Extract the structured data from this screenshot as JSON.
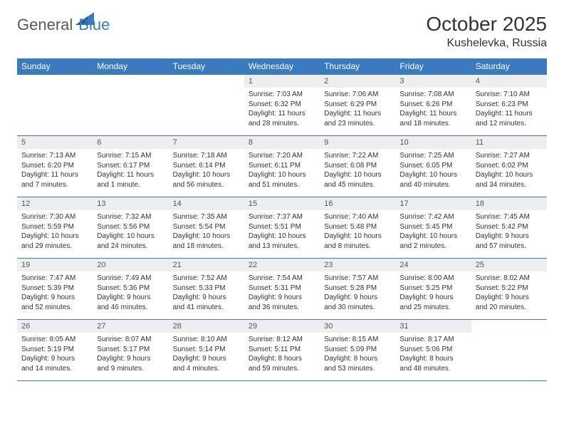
{
  "brand": {
    "part1": "General",
    "part2": "Blue"
  },
  "title": "October 2025",
  "location": "Kushelevka, Russia",
  "header_bg": "#3a7bbf",
  "header_fg": "#ffffff",
  "daynum_bg": "#eeeeee",
  "border_color": "#3a7bbf",
  "text_color": "#333333",
  "font_family": "Arial, Helvetica, sans-serif",
  "title_fontsize": 28,
  "location_fontsize": 16,
  "header_fontsize": 12,
  "cell_fontsize": 10,
  "columns": [
    "Sunday",
    "Monday",
    "Tuesday",
    "Wednesday",
    "Thursday",
    "Friday",
    "Saturday"
  ],
  "weeks": [
    [
      null,
      null,
      null,
      {
        "n": "1",
        "sr": "7:03 AM",
        "ss": "6:32 PM",
        "dl": "11 hours and 28 minutes."
      },
      {
        "n": "2",
        "sr": "7:06 AM",
        "ss": "6:29 PM",
        "dl": "11 hours and 23 minutes."
      },
      {
        "n": "3",
        "sr": "7:08 AM",
        "ss": "6:26 PM",
        "dl": "11 hours and 18 minutes."
      },
      {
        "n": "4",
        "sr": "7:10 AM",
        "ss": "6:23 PM",
        "dl": "11 hours and 12 minutes."
      }
    ],
    [
      {
        "n": "5",
        "sr": "7:13 AM",
        "ss": "6:20 PM",
        "dl": "11 hours and 7 minutes."
      },
      {
        "n": "6",
        "sr": "7:15 AM",
        "ss": "6:17 PM",
        "dl": "11 hours and 1 minute."
      },
      {
        "n": "7",
        "sr": "7:18 AM",
        "ss": "6:14 PM",
        "dl": "10 hours and 56 minutes."
      },
      {
        "n": "8",
        "sr": "7:20 AM",
        "ss": "6:11 PM",
        "dl": "10 hours and 51 minutes."
      },
      {
        "n": "9",
        "sr": "7:22 AM",
        "ss": "6:08 PM",
        "dl": "10 hours and 45 minutes."
      },
      {
        "n": "10",
        "sr": "7:25 AM",
        "ss": "6:05 PM",
        "dl": "10 hours and 40 minutes."
      },
      {
        "n": "11",
        "sr": "7:27 AM",
        "ss": "6:02 PM",
        "dl": "10 hours and 34 minutes."
      }
    ],
    [
      {
        "n": "12",
        "sr": "7:30 AM",
        "ss": "5:59 PM",
        "dl": "10 hours and 29 minutes."
      },
      {
        "n": "13",
        "sr": "7:32 AM",
        "ss": "5:56 PM",
        "dl": "10 hours and 24 minutes."
      },
      {
        "n": "14",
        "sr": "7:35 AM",
        "ss": "5:54 PM",
        "dl": "10 hours and 18 minutes."
      },
      {
        "n": "15",
        "sr": "7:37 AM",
        "ss": "5:51 PM",
        "dl": "10 hours and 13 minutes."
      },
      {
        "n": "16",
        "sr": "7:40 AM",
        "ss": "5:48 PM",
        "dl": "10 hours and 8 minutes."
      },
      {
        "n": "17",
        "sr": "7:42 AM",
        "ss": "5:45 PM",
        "dl": "10 hours and 2 minutes."
      },
      {
        "n": "18",
        "sr": "7:45 AM",
        "ss": "5:42 PM",
        "dl": "9 hours and 57 minutes."
      }
    ],
    [
      {
        "n": "19",
        "sr": "7:47 AM",
        "ss": "5:39 PM",
        "dl": "9 hours and 52 minutes."
      },
      {
        "n": "20",
        "sr": "7:49 AM",
        "ss": "5:36 PM",
        "dl": "9 hours and 46 minutes."
      },
      {
        "n": "21",
        "sr": "7:52 AM",
        "ss": "5:33 PM",
        "dl": "9 hours and 41 minutes."
      },
      {
        "n": "22",
        "sr": "7:54 AM",
        "ss": "5:31 PM",
        "dl": "9 hours and 36 minutes."
      },
      {
        "n": "23",
        "sr": "7:57 AM",
        "ss": "5:28 PM",
        "dl": "9 hours and 30 minutes."
      },
      {
        "n": "24",
        "sr": "8:00 AM",
        "ss": "5:25 PM",
        "dl": "9 hours and 25 minutes."
      },
      {
        "n": "25",
        "sr": "8:02 AM",
        "ss": "5:22 PM",
        "dl": "9 hours and 20 minutes."
      }
    ],
    [
      {
        "n": "26",
        "sr": "8:05 AM",
        "ss": "5:19 PM",
        "dl": "9 hours and 14 minutes."
      },
      {
        "n": "27",
        "sr": "8:07 AM",
        "ss": "5:17 PM",
        "dl": "9 hours and 9 minutes."
      },
      {
        "n": "28",
        "sr": "8:10 AM",
        "ss": "5:14 PM",
        "dl": "9 hours and 4 minutes."
      },
      {
        "n": "29",
        "sr": "8:12 AM",
        "ss": "5:11 PM",
        "dl": "8 hours and 59 minutes."
      },
      {
        "n": "30",
        "sr": "8:15 AM",
        "ss": "5:09 PM",
        "dl": "8 hours and 53 minutes."
      },
      {
        "n": "31",
        "sr": "8:17 AM",
        "ss": "5:06 PM",
        "dl": "8 hours and 48 minutes."
      },
      null
    ]
  ],
  "labels": {
    "sunrise": "Sunrise:",
    "sunset": "Sunset:",
    "daylight": "Daylight:"
  }
}
